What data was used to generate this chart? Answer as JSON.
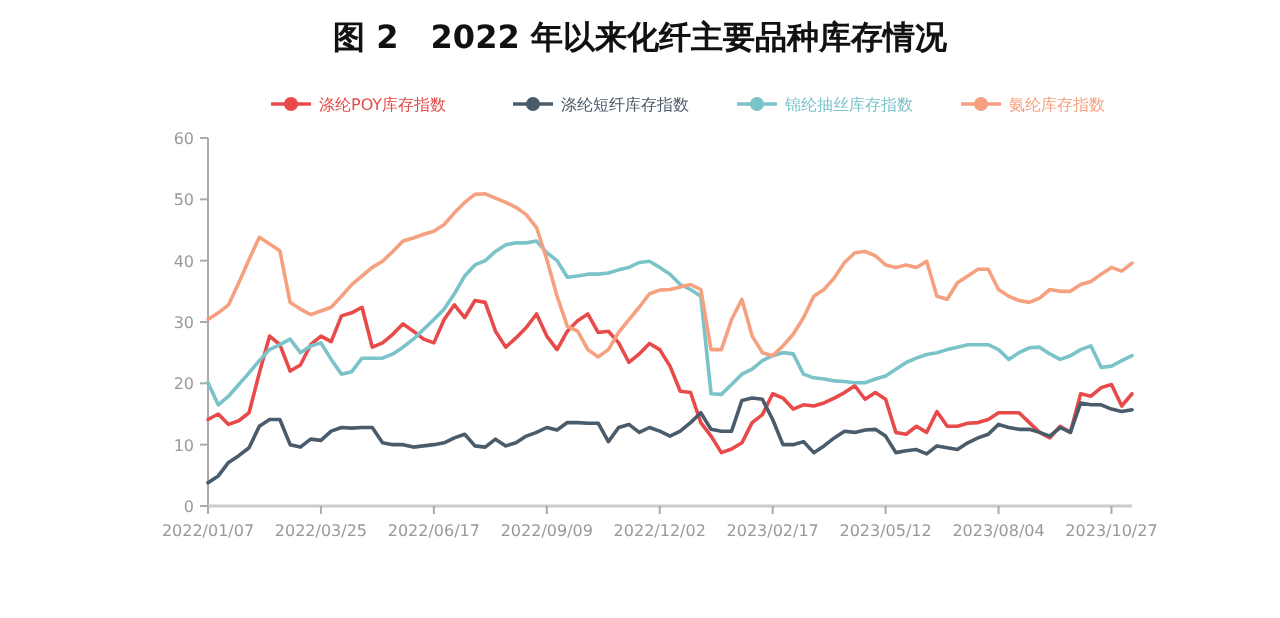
{
  "chart_data": {
    "type": "line",
    "title": "图 2　2022 年以来化纤主要品种库存情况",
    "categories": [
      "2022/01/07",
      null,
      null,
      null,
      null,
      null,
      null,
      null,
      null,
      null,
      null,
      "2022/03/25",
      null,
      null,
      null,
      null,
      null,
      null,
      null,
      null,
      null,
      null,
      "2022/06/17",
      null,
      null,
      null,
      null,
      null,
      null,
      null,
      null,
      null,
      null,
      "2022/09/09",
      null,
      null,
      null,
      null,
      null,
      null,
      null,
      null,
      null,
      null,
      "2022/12/02",
      null,
      null,
      null,
      null,
      null,
      null,
      null,
      null,
      null,
      null,
      "2023/02/17",
      null,
      null,
      null,
      null,
      null,
      null,
      null,
      null,
      null,
      null,
      "2023/05/12",
      null,
      null,
      null,
      null,
      null,
      null,
      null,
      null,
      null,
      null,
      "2023/08/04",
      null,
      null,
      null,
      null,
      null,
      null,
      null,
      null,
      null,
      null,
      "2023/10/27",
      null,
      null
    ],
    "series": [
      {
        "name": "涤纶POY库存指数",
        "color": "#e84a4a",
        "values": [
          14.1,
          15.0,
          13.3,
          13.9,
          15.2,
          21.7,
          27.7,
          26.3,
          22.0,
          23.0,
          26.3,
          27.7,
          26.8,
          31.0,
          31.5,
          32.4,
          25.9,
          26.6,
          28.0,
          29.7,
          28.5,
          27.2,
          26.6,
          30.4,
          32.8,
          30.7,
          33.5,
          33.2,
          28.5,
          25.9,
          27.4,
          29.1,
          31.3,
          27.7,
          25.5,
          28.5,
          30.2,
          31.3,
          28.3,
          28.5,
          26.6,
          23.4,
          24.8,
          26.5,
          25.5,
          22.8,
          18.7,
          18.5,
          13.6,
          11.4,
          8.7,
          9.3,
          10.3,
          13.6,
          14.9,
          18.3,
          17.6,
          15.8,
          16.5,
          16.3,
          16.8,
          17.6,
          18.5,
          19.6,
          17.4,
          18.5,
          17.4,
          12.0,
          11.7,
          13.0,
          12.0,
          15.4,
          13.0,
          13.0,
          13.5,
          13.6,
          14.1,
          15.2,
          15.2,
          15.2,
          13.6,
          12.0,
          11.1,
          13.0,
          12.0,
          18.3,
          17.9,
          19.3,
          19.8,
          16.3,
          18.3
        ]
      },
      {
        "name": "涤纶短纤库存指数",
        "color": "#4a5b6c",
        "values": [
          3.8,
          4.9,
          7.1,
          8.2,
          9.5,
          13.0,
          14.1,
          14.1,
          10.0,
          9.6,
          10.9,
          10.7,
          12.2,
          12.8,
          12.7,
          12.8,
          12.8,
          10.3,
          10.0,
          10.0,
          9.6,
          9.8,
          10.0,
          10.3,
          11.1,
          11.7,
          9.8,
          9.6,
          10.9,
          9.8,
          10.3,
          11.4,
          12.0,
          12.8,
          12.4,
          13.6,
          13.6,
          13.5,
          13.5,
          10.5,
          12.8,
          13.3,
          12.0,
          12.8,
          12.2,
          11.4,
          12.2,
          13.6,
          15.2,
          12.5,
          12.2,
          12.2,
          17.2,
          17.6,
          17.4,
          14.1,
          10.0,
          10.0,
          10.5,
          8.7,
          9.8,
          11.1,
          12.2,
          12.0,
          12.4,
          12.5,
          11.4,
          8.7,
          9.0,
          9.2,
          8.5,
          9.8,
          9.5,
          9.2,
          10.3,
          11.1,
          11.7,
          13.3,
          12.8,
          12.5,
          12.5,
          12.0,
          11.4,
          12.8,
          12.0,
          16.8,
          16.5,
          16.5,
          15.8,
          15.4,
          15.7
        ]
      },
      {
        "name": "锦纶抽丝库存指数",
        "color": "#7ac3c8",
        "values": [
          20.1,
          16.5,
          17.9,
          19.8,
          21.7,
          23.7,
          25.5,
          26.3,
          27.2,
          25.0,
          26.1,
          26.6,
          23.9,
          21.5,
          21.9,
          24.1,
          24.1,
          24.1,
          24.8,
          25.9,
          27.2,
          28.8,
          30.4,
          32.1,
          34.6,
          37.5,
          39.3,
          40.0,
          41.5,
          42.6,
          42.9,
          42.9,
          43.2,
          41.3,
          40.0,
          37.3,
          37.5,
          37.8,
          37.8,
          38.0,
          38.5,
          38.9,
          39.7,
          39.9,
          38.9,
          37.8,
          36.1,
          35.3,
          34.2,
          18.3,
          18.2,
          19.8,
          21.5,
          22.3,
          23.7,
          24.5,
          25.0,
          24.8,
          21.5,
          20.9,
          20.7,
          20.4,
          20.3,
          20.1,
          20.1,
          20.7,
          21.2,
          22.3,
          23.4,
          24.1,
          24.7,
          25.0,
          25.5,
          25.9,
          26.3,
          26.3,
          26.3,
          25.5,
          23.9,
          25.0,
          25.8,
          25.9,
          24.8,
          23.9,
          24.5,
          25.5,
          26.1,
          22.6,
          22.8,
          23.7,
          24.5
        ]
      },
      {
        "name": "氨纶库存指数",
        "color": "#f5a07f",
        "values": [
          30.4,
          31.5,
          32.8,
          36.4,
          40.2,
          43.8,
          42.7,
          41.6,
          33.2,
          32.1,
          31.2,
          31.8,
          32.4,
          34.2,
          36.1,
          37.5,
          38.9,
          39.9,
          41.5,
          43.2,
          43.7,
          44.3,
          44.8,
          45.9,
          47.8,
          49.5,
          50.8,
          50.9,
          50.2,
          49.5,
          48.7,
          47.5,
          45.4,
          40.2,
          34.2,
          29.3,
          28.5,
          25.5,
          24.3,
          25.5,
          28.3,
          30.4,
          32.4,
          34.6,
          35.2,
          35.3,
          35.7,
          36.1,
          35.3,
          25.5,
          25.5,
          30.4,
          33.7,
          27.7,
          25.0,
          24.5,
          26.1,
          28.0,
          30.7,
          34.2,
          35.3,
          37.2,
          39.7,
          41.3,
          41.5,
          40.8,
          39.3,
          38.9,
          39.3,
          38.9,
          39.9,
          34.2,
          33.7,
          36.4,
          37.5,
          38.6,
          38.6,
          35.3,
          34.2,
          33.5,
          33.2,
          33.9,
          35.3,
          35.0,
          35.0,
          36.1,
          36.6,
          37.8,
          38.9,
          38.3,
          39.6
        ]
      }
    ],
    "ylim": [
      0,
      60
    ],
    "yticks": [
      0,
      10,
      20,
      30,
      40,
      50,
      60
    ],
    "grid": false,
    "legend": "top",
    "marker": "none",
    "line_style": "solid"
  }
}
